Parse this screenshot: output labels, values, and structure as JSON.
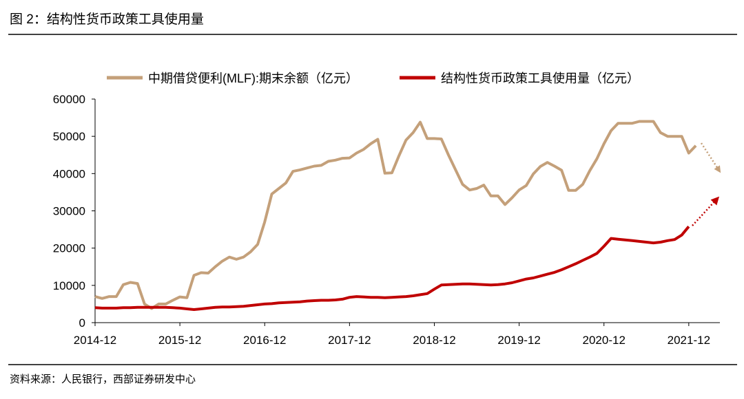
{
  "chart_data": {
    "type": "line",
    "title": "图 2：结构性货币政策工具使用量",
    "source": "资料来源：人民银行，西部证券研发中心",
    "categories": [
      "2014-12",
      null,
      null,
      null,
      null,
      null,
      null,
      null,
      null,
      null,
      null,
      null,
      "2015-12",
      null,
      null,
      null,
      null,
      null,
      null,
      null,
      null,
      null,
      null,
      null,
      "2016-12",
      null,
      null,
      null,
      null,
      null,
      null,
      null,
      null,
      null,
      null,
      null,
      "2017-12",
      null,
      null,
      null,
      null,
      null,
      null,
      null,
      null,
      null,
      null,
      null,
      "2018-12",
      null,
      null,
      null,
      null,
      null,
      null,
      null,
      null,
      null,
      null,
      null,
      "2019-12",
      null,
      null,
      null,
      null,
      null,
      null,
      null,
      null,
      null,
      null,
      null,
      "2020-12",
      null,
      null,
      null,
      null,
      null,
      null,
      null,
      null,
      null,
      null,
      null,
      "2021-12",
      null
    ],
    "series": [
      {
        "name": "中期借贷便利(MLF):期末余额（亿元）",
        "color": "#c4a07a",
        "values": [
          7000,
          6500,
          7000,
          7000,
          10200,
          10800,
          10500,
          5000,
          3800,
          5000,
          5000,
          6000,
          6900,
          6700,
          12700,
          13400,
          13300,
          15000,
          16500,
          17600,
          17000,
          17600,
          19000,
          21000,
          27000,
          34500,
          36000,
          37500,
          40600,
          41000,
          41500,
          42000,
          42200,
          43300,
          43600,
          44100,
          44200,
          45500,
          46500,
          48000,
          49200,
          40100,
          40200,
          44800,
          49000,
          51000,
          53800,
          49400,
          49400,
          49300,
          45000,
          41000,
          37100,
          35600,
          36000,
          36900,
          34000,
          34000,
          31700,
          33500,
          35600,
          36800,
          39900,
          41900,
          43000,
          42000,
          40900,
          35500,
          35500,
          37100,
          40800,
          44000,
          48000,
          51500,
          53500,
          53500,
          53500,
          54000,
          54000,
          54000,
          51000,
          50000,
          50000,
          50000,
          45500,
          47500
        ]
      },
      {
        "name": "结构性货币政策工具使用量（亿元）",
        "color": "#c00000",
        "values": [
          4000,
          3900,
          3900,
          3900,
          4000,
          4000,
          4100,
          4100,
          4100,
          4100,
          4100,
          4000,
          3900,
          3700,
          3500,
          3700,
          3900,
          4100,
          4200,
          4200,
          4300,
          4400,
          4600,
          4800,
          5000,
          5100,
          5300,
          5400,
          5500,
          5600,
          5800,
          5900,
          6000,
          6000,
          6100,
          6300,
          6800,
          7000,
          6900,
          6800,
          6800,
          6700,
          6800,
          6900,
          7000,
          7200,
          7500,
          7800,
          9000,
          10100,
          10200,
          10300,
          10400,
          10400,
          10300,
          10200,
          10100,
          10200,
          10400,
          10700,
          11200,
          11700,
          12000,
          12500,
          13000,
          13500,
          14200,
          15000,
          15800,
          16700,
          17600,
          18600,
          20500,
          22600,
          22400,
          22200,
          22000,
          21800,
          21600,
          21400,
          21600,
          22000,
          22300,
          23500,
          25800,
          null
        ]
      }
    ],
    "ylim": [
      0,
      60000
    ],
    "yticks": [
      0,
      10000,
      20000,
      30000,
      40000,
      50000,
      60000
    ]
  }
}
